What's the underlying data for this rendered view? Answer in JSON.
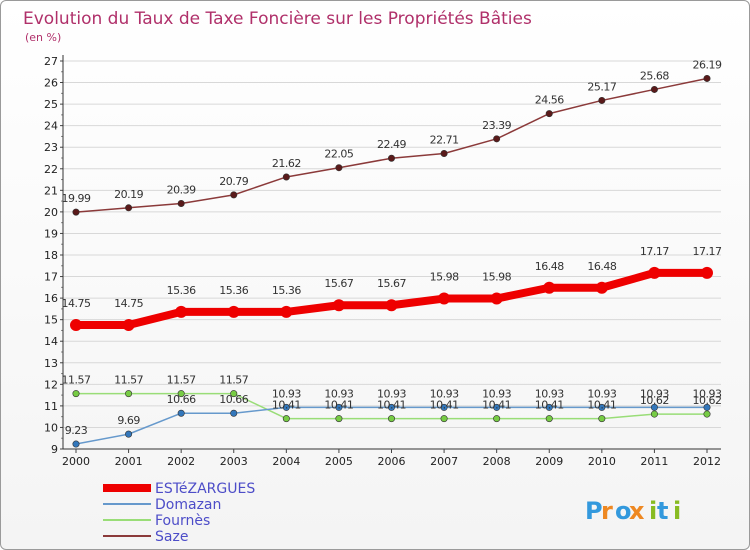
{
  "chart_data": {
    "type": "line",
    "title": "Evolution du Taux de Taxe Foncière sur les Propriétés Bâties",
    "subtitle": "(en %)",
    "xlabel": "",
    "ylabel": "",
    "ylim": [
      9,
      27
    ],
    "yticks": [
      9,
      10,
      11,
      12,
      13,
      14,
      15,
      16,
      17,
      18,
      19,
      20,
      21,
      22,
      23,
      24,
      25,
      26,
      27
    ],
    "x": [
      2000,
      2001,
      2002,
      2003,
      2004,
      2005,
      2006,
      2007,
      2008,
      2009,
      2010,
      2011,
      2012
    ],
    "grid": "horizontal",
    "legend_position": "bottom-left",
    "series": [
      {
        "name": "Saze",
        "color": "#8b3a3a",
        "marker": "#5a1a1a",
        "values": [
          19.99,
          20.19,
          20.39,
          20.79,
          21.62,
          22.05,
          22.49,
          22.71,
          23.39,
          24.56,
          25.17,
          25.68,
          26.19
        ],
        "labels": [
          "19.99",
          "20.19",
          "20.39",
          "20.79",
          "21.62",
          "22.05",
          "22.49",
          "22.71",
          "23.39",
          "24.56",
          "25.17",
          "25.68",
          "26.19"
        ]
      },
      {
        "name": "Fournès",
        "color": "#99dd77",
        "marker": "#77cc44",
        "values": [
          11.57,
          11.57,
          11.57,
          11.57,
          10.41,
          10.41,
          10.41,
          10.41,
          10.41,
          10.41,
          10.41,
          10.62,
          10.62
        ],
        "labels": [
          "11.57",
          "11.57",
          "11.57",
          "11.57",
          "10.41",
          "10.41",
          "10.41",
          "10.41",
          "10.41",
          "10.41",
          "10.41",
          "10.62",
          "10.62"
        ]
      },
      {
        "name": "Domazan",
        "color": "#6699cc",
        "marker": "#3377bb",
        "values": [
          9.23,
          9.69,
          10.66,
          10.66,
          10.93,
          10.93,
          10.93,
          10.93,
          10.93,
          10.93,
          10.93,
          10.93,
          10.93
        ],
        "labels": [
          "9.23",
          "9.69",
          "10.66",
          "10.66",
          "10.93",
          "10.93",
          "10.93",
          "10.93",
          "10.93",
          "10.93",
          "10.93",
          "10.93",
          "10.93"
        ]
      },
      {
        "name": "ESTéZARGUES",
        "color": "#ee0000",
        "marker": "#ee0000",
        "values": [
          14.75,
          14.75,
          15.36,
          15.36,
          15.36,
          15.67,
          15.67,
          15.98,
          15.98,
          16.48,
          16.48,
          17.17,
          17.17
        ],
        "labels": [
          "14.75",
          "14.75",
          "15.36",
          "15.36",
          "15.36",
          "15.67",
          "15.67",
          "15.98",
          "15.98",
          "16.48",
          "16.48",
          "17.17",
          "17.17"
        ]
      }
    ],
    "legend": [
      "ESTéZARGUES",
      "Domazan",
      "Fournès",
      "Saze"
    ]
  },
  "logo": {
    "text": "Proxiti",
    "letters": [
      "P",
      "r",
      "o",
      "x",
      "i",
      "t",
      "i"
    ],
    "colors": [
      "#3399dd",
      "#ee8822",
      "#3399dd",
      "#ee8822",
      "#88bb22",
      "#3399dd",
      "#88bb22"
    ]
  }
}
